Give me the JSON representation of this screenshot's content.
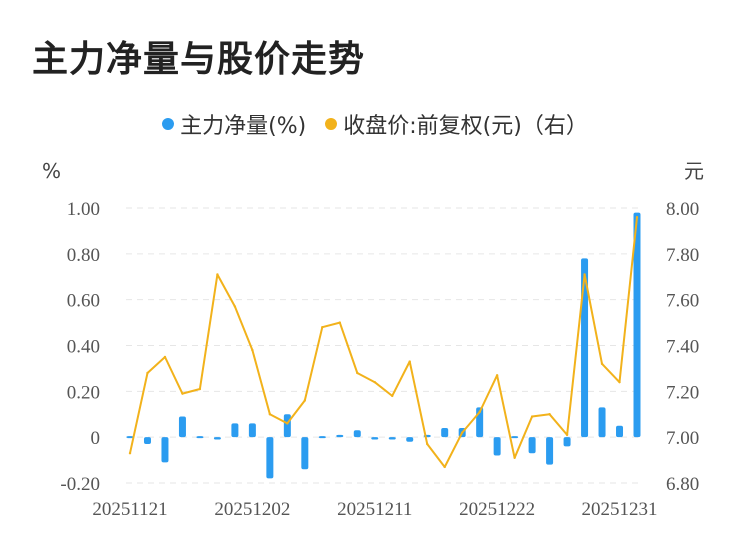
{
  "title": "主力净量与股价走势",
  "legend": [
    {
      "label": "主力净量(%)",
      "color": "#2b9cf0"
    },
    {
      "label": "收盘价:前复权(元)（右）",
      "color": "#f2b21b"
    }
  ],
  "chart_data": {
    "type": "bar+line",
    "x_tick_labels": [
      "20251121",
      "20251202",
      "20251211",
      "20251222",
      "20251231"
    ],
    "left_axis": {
      "unit": "%",
      "ticks": [
        "1.00",
        "0.80",
        "0.60",
        "0.40",
        "0.20",
        "0",
        "-0.20"
      ],
      "range": [
        -0.2,
        1.0
      ]
    },
    "right_axis": {
      "unit": "元",
      "ticks": [
        "8.00",
        "7.80",
        "7.60",
        "7.40",
        "7.20",
        "7.00",
        "6.80"
      ],
      "range": [
        6.8,
        8.0
      ]
    },
    "series": [
      {
        "name": "主力净量(%)",
        "type": "bar",
        "color": "#2b9cf0",
        "values": [
          0.0,
          -0.03,
          -0.11,
          0.09,
          0.0,
          -0.01,
          0.06,
          0.06,
          -0.18,
          0.1,
          -0.14,
          0.0,
          0.01,
          0.03,
          -0.01,
          -0.01,
          -0.02,
          0.01,
          0.04,
          0.04,
          0.13,
          -0.08,
          0.0,
          -0.07,
          -0.12,
          -0.04,
          0.78,
          0.13,
          0.05,
          0.98
        ]
      },
      {
        "name": "收盘价:前复权(元)（右）",
        "type": "line",
        "color": "#f2b21b",
        "values": [
          6.93,
          7.28,
          7.35,
          7.19,
          7.21,
          7.71,
          7.57,
          7.38,
          7.1,
          7.06,
          7.16,
          7.48,
          7.5,
          7.28,
          7.24,
          7.18,
          7.33,
          6.97,
          6.87,
          7.02,
          7.11,
          7.27,
          6.91,
          7.09,
          7.1,
          7.01,
          7.71,
          7.32,
          7.24,
          7.96
        ]
      }
    ],
    "grid": true
  }
}
